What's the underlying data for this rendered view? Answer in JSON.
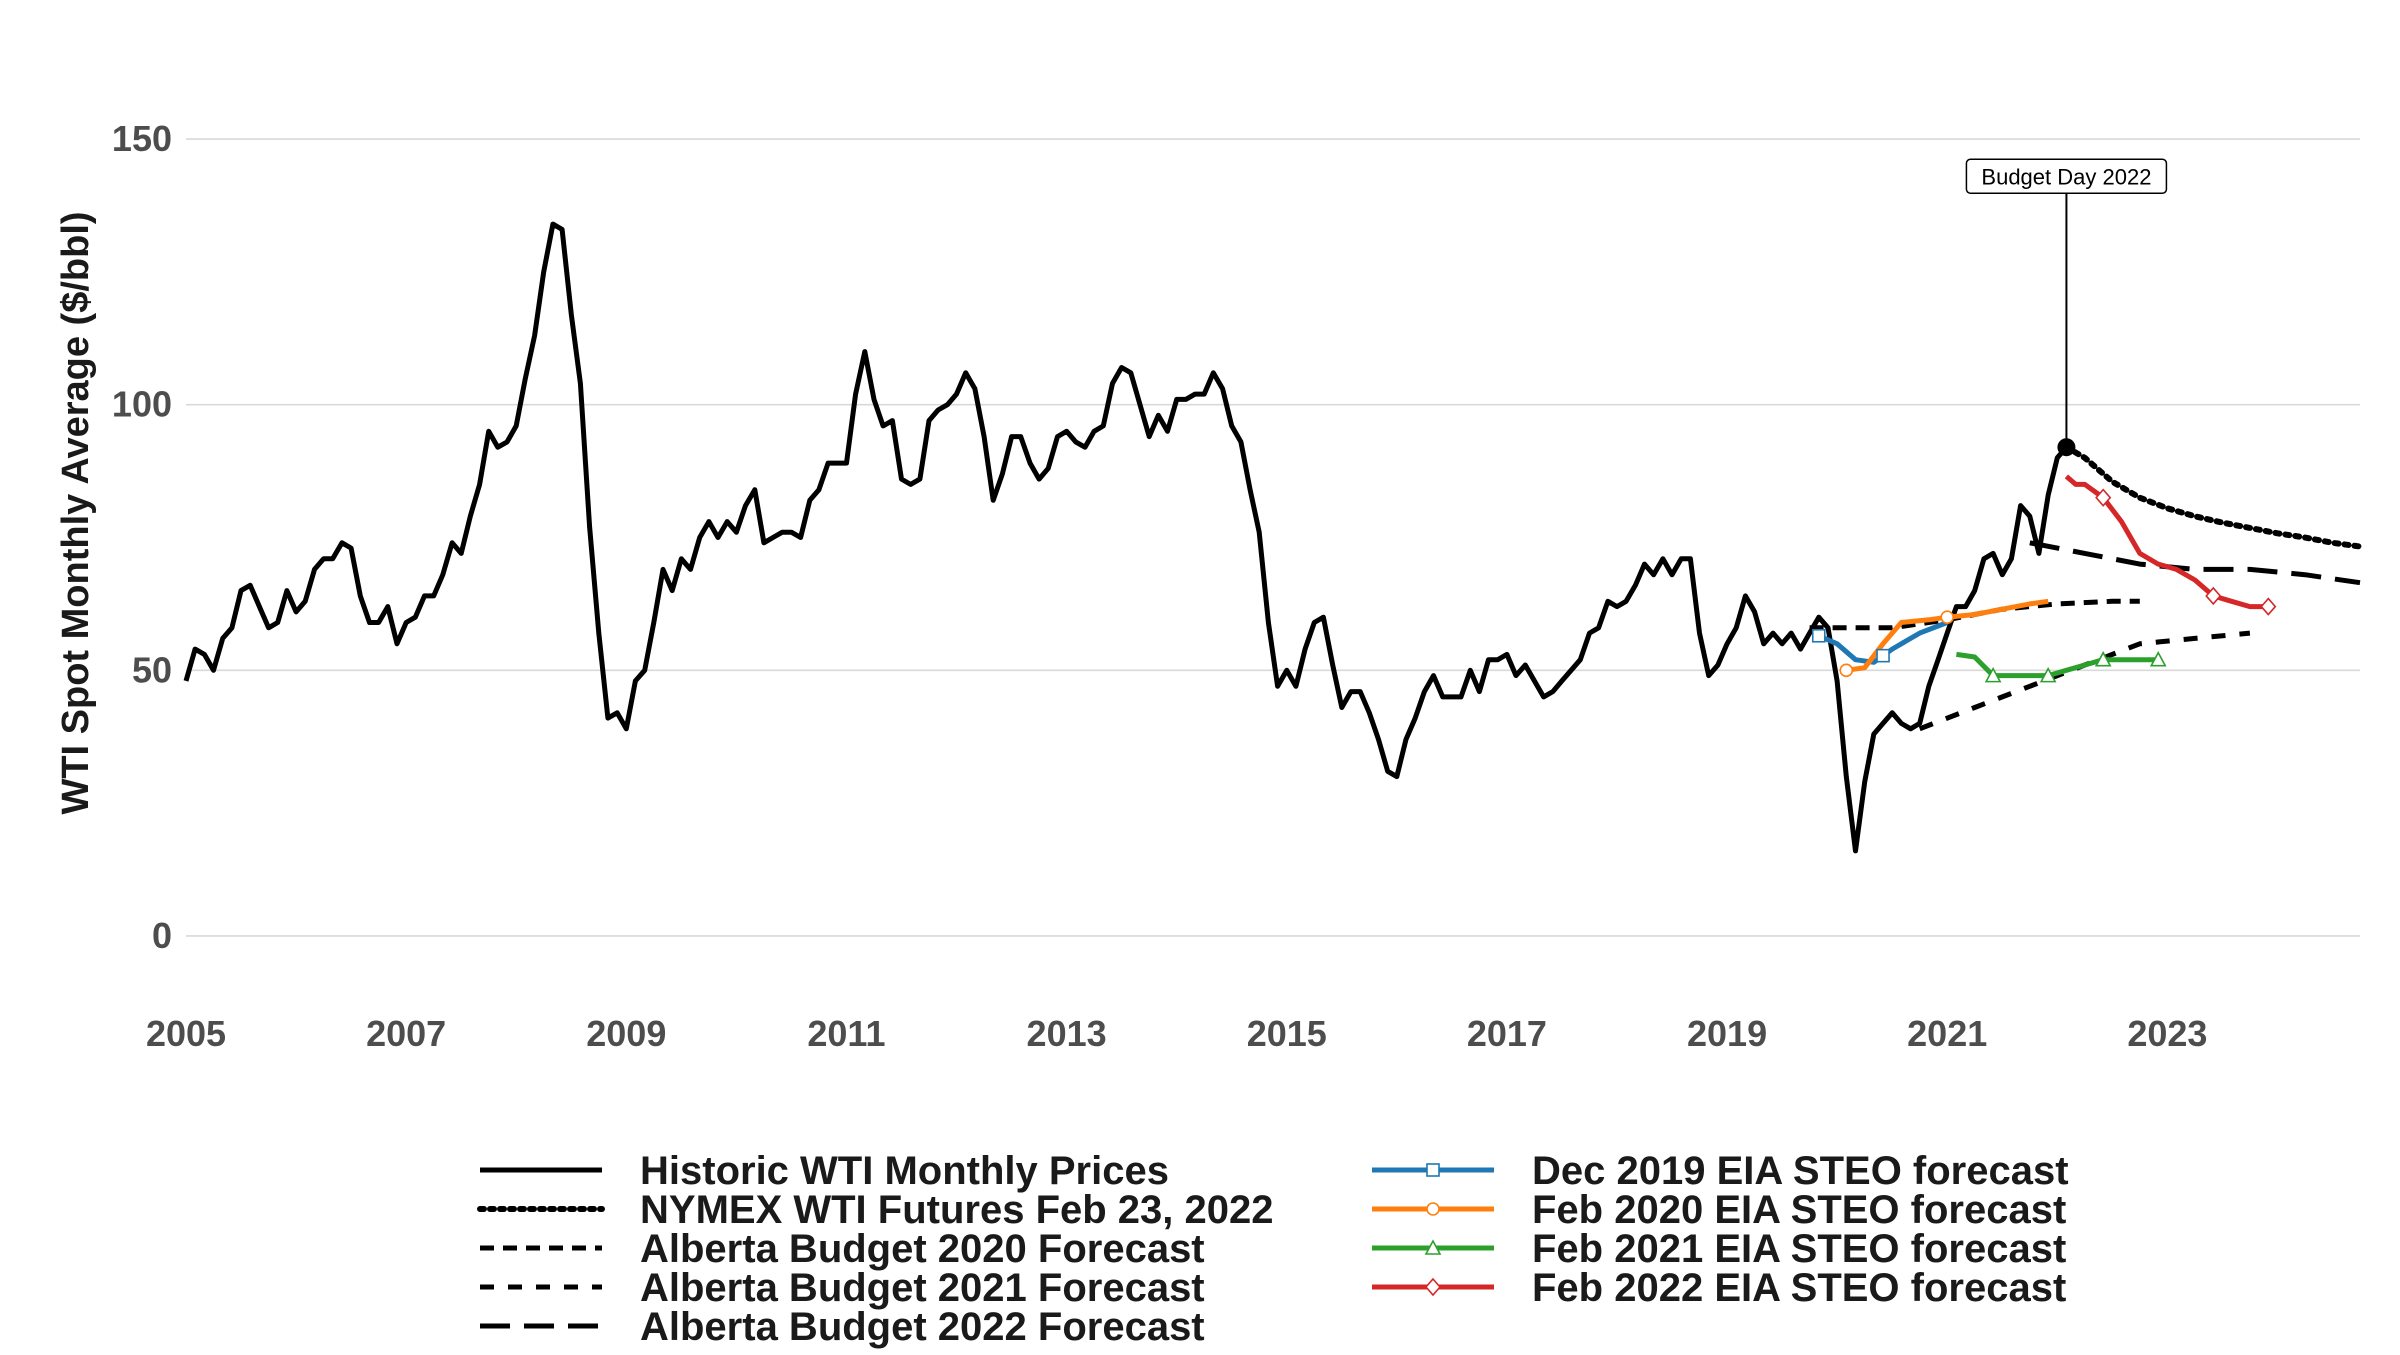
{
  "chart_data": {
    "type": "line",
    "title": "",
    "xlabel": "",
    "ylabel": "WTI Spot Monthly Average ($/bbl)",
    "xlim": [
      2005.0,
      2024.75
    ],
    "ylim": [
      -13,
      163
    ],
    "x_ticks": [
      2005,
      2007,
      2009,
      2011,
      2013,
      2015,
      2017,
      2019,
      2021,
      2023
    ],
    "x_tick_labels": [
      "2005",
      "2007",
      "2009",
      "2011",
      "2013",
      "2015",
      "2017",
      "2019",
      "2021",
      "2023"
    ],
    "y_ticks": [
      0,
      50,
      100,
      150
    ],
    "y_tick_labels": [
      "0",
      "50",
      "100",
      "150"
    ],
    "grid": "horizontal major gridlines",
    "legend_position": "bottom, two columns",
    "series": [
      {
        "name": "Historic WTI Monthly Prices",
        "color": "#000000",
        "dash": "solid",
        "points": [
          [
            2005.0,
            48
          ],
          [
            2005.083,
            54
          ],
          [
            2005.167,
            53
          ],
          [
            2005.25,
            50
          ],
          [
            2005.333,
            56
          ],
          [
            2005.417,
            58
          ],
          [
            2005.5,
            65
          ],
          [
            2005.583,
            66
          ],
          [
            2005.667,
            62
          ],
          [
            2005.75,
            58
          ],
          [
            2005.833,
            59
          ],
          [
            2005.917,
            65
          ],
          [
            2006.0,
            61
          ],
          [
            2006.083,
            63
          ],
          [
            2006.167,
            69
          ],
          [
            2006.25,
            71
          ],
          [
            2006.333,
            71
          ],
          [
            2006.417,
            74
          ],
          [
            2006.5,
            73
          ],
          [
            2006.583,
            64
          ],
          [
            2006.667,
            59
          ],
          [
            2006.75,
            59
          ],
          [
            2006.833,
            62
          ],
          [
            2006.917,
            55
          ],
          [
            2007.0,
            59
          ],
          [
            2007.083,
            60
          ],
          [
            2007.167,
            64
          ],
          [
            2007.25,
            64
          ],
          [
            2007.333,
            68
          ],
          [
            2007.417,
            74
          ],
          [
            2007.5,
            72
          ],
          [
            2007.583,
            79
          ],
          [
            2007.667,
            85
          ],
          [
            2007.75,
            95
          ],
          [
            2007.833,
            92
          ],
          [
            2007.917,
            93
          ],
          [
            2008.0,
            96
          ],
          [
            2008.083,
            105
          ],
          [
            2008.167,
            113
          ],
          [
            2008.25,
            125
          ],
          [
            2008.333,
            134
          ],
          [
            2008.417,
            133
          ],
          [
            2008.5,
            117
          ],
          [
            2008.583,
            104
          ],
          [
            2008.667,
            77
          ],
          [
            2008.75,
            57
          ],
          [
            2008.833,
            41
          ],
          [
            2008.917,
            42
          ],
          [
            2009.0,
            39
          ],
          [
            2009.083,
            48
          ],
          [
            2009.167,
            50
          ],
          [
            2009.25,
            59
          ],
          [
            2009.333,
            69
          ],
          [
            2009.417,
            65
          ],
          [
            2009.5,
            71
          ],
          [
            2009.583,
            69
          ],
          [
            2009.667,
            75
          ],
          [
            2009.75,
            78
          ],
          [
            2009.833,
            75
          ],
          [
            2009.917,
            78
          ],
          [
            2010.0,
            76
          ],
          [
            2010.083,
            81
          ],
          [
            2010.167,
            84
          ],
          [
            2010.25,
            74
          ],
          [
            2010.333,
            75
          ],
          [
            2010.417,
            76
          ],
          [
            2010.5,
            76
          ],
          [
            2010.583,
            75
          ],
          [
            2010.667,
            82
          ],
          [
            2010.75,
            84
          ],
          [
            2010.833,
            89
          ],
          [
            2010.917,
            89
          ],
          [
            2011.0,
            89
          ],
          [
            2011.083,
            102
          ],
          [
            2011.167,
            110
          ],
          [
            2011.25,
            101
          ],
          [
            2011.333,
            96
          ],
          [
            2011.417,
            97
          ],
          [
            2011.5,
            86
          ],
          [
            2011.583,
            85
          ],
          [
            2011.667,
            86
          ],
          [
            2011.75,
            97
          ],
          [
            2011.833,
            99
          ],
          [
            2011.917,
            100
          ],
          [
            2012.0,
            102
          ],
          [
            2012.083,
            106
          ],
          [
            2012.167,
            103
          ],
          [
            2012.25,
            94
          ],
          [
            2012.333,
            82
          ],
          [
            2012.417,
            87
          ],
          [
            2012.5,
            94
          ],
          [
            2012.583,
            94
          ],
          [
            2012.667,
            89
          ],
          [
            2012.75,
            86
          ],
          [
            2012.833,
            88
          ],
          [
            2012.917,
            94
          ],
          [
            2013.0,
            95
          ],
          [
            2013.083,
            93
          ],
          [
            2013.167,
            92
          ],
          [
            2013.25,
            95
          ],
          [
            2013.333,
            96
          ],
          [
            2013.417,
            104
          ],
          [
            2013.5,
            107
          ],
          [
            2013.583,
            106
          ],
          [
            2013.667,
            100
          ],
          [
            2013.75,
            94
          ],
          [
            2013.833,
            98
          ],
          [
            2013.917,
            95
          ],
          [
            2014.0,
            101
          ],
          [
            2014.083,
            101
          ],
          [
            2014.167,
            102
          ],
          [
            2014.25,
            102
          ],
          [
            2014.333,
            106
          ],
          [
            2014.417,
            103
          ],
          [
            2014.5,
            96
          ],
          [
            2014.583,
            93
          ],
          [
            2014.667,
            84
          ],
          [
            2014.75,
            76
          ],
          [
            2014.833,
            59
          ],
          [
            2014.917,
            47
          ],
          [
            2015.0,
            50
          ],
          [
            2015.083,
            47
          ],
          [
            2015.167,
            54
          ],
          [
            2015.25,
            59
          ],
          [
            2015.333,
            60
          ],
          [
            2015.417,
            51
          ],
          [
            2015.5,
            43
          ],
          [
            2015.583,
            46
          ],
          [
            2015.667,
            46
          ],
          [
            2015.75,
            42
          ],
          [
            2015.833,
            37
          ],
          [
            2015.917,
            31
          ],
          [
            2016.0,
            30
          ],
          [
            2016.083,
            37
          ],
          [
            2016.167,
            41
          ],
          [
            2016.25,
            46
          ],
          [
            2016.333,
            49
          ],
          [
            2016.417,
            45
          ],
          [
            2016.5,
            45
          ],
          [
            2016.583,
            45
          ],
          [
            2016.667,
            50
          ],
          [
            2016.75,
            46
          ],
          [
            2016.833,
            52
          ],
          [
            2016.917,
            52
          ],
          [
            2017.0,
            53
          ],
          [
            2017.083,
            49
          ],
          [
            2017.167,
            51
          ],
          [
            2017.25,
            48
          ],
          [
            2017.333,
            45
          ],
          [
            2017.417,
            46
          ],
          [
            2017.5,
            48
          ],
          [
            2017.583,
            50
          ],
          [
            2017.667,
            52
          ],
          [
            2017.75,
            57
          ],
          [
            2017.833,
            58
          ],
          [
            2017.917,
            63
          ],
          [
            2018.0,
            62
          ],
          [
            2018.083,
            63
          ],
          [
            2018.167,
            66
          ],
          [
            2018.25,
            70
          ],
          [
            2018.333,
            68
          ],
          [
            2018.417,
            71
          ],
          [
            2018.5,
            68
          ],
          [
            2018.583,
            71
          ],
          [
            2018.667,
            71
          ],
          [
            2018.75,
            57
          ],
          [
            2018.833,
            49
          ],
          [
            2018.917,
            51
          ],
          [
            2019.0,
            55
          ],
          [
            2019.083,
            58
          ],
          [
            2019.167,
            64
          ],
          [
            2019.25,
            61
          ],
          [
            2019.333,
            55
          ],
          [
            2019.417,
            57
          ],
          [
            2019.5,
            55
          ],
          [
            2019.583,
            57
          ],
          [
            2019.667,
            54
          ],
          [
            2019.75,
            57
          ],
          [
            2019.833,
            60
          ],
          [
            2019.917,
            58
          ],
          [
            2020.0,
            48
          ],
          [
            2020.083,
            30
          ],
          [
            2020.167,
            16
          ],
          [
            2020.25,
            29
          ],
          [
            2020.333,
            38
          ],
          [
            2020.417,
            40
          ],
          [
            2020.5,
            42
          ],
          [
            2020.583,
            40
          ],
          [
            2020.667,
            39
          ],
          [
            2020.75,
            40
          ],
          [
            2020.833,
            47
          ],
          [
            2020.917,
            52
          ],
          [
            2021.0,
            57
          ],
          [
            2021.083,
            62
          ],
          [
            2021.167,
            62
          ],
          [
            2021.25,
            65
          ],
          [
            2021.333,
            71
          ],
          [
            2021.417,
            72
          ],
          [
            2021.5,
            68
          ],
          [
            2021.583,
            71
          ],
          [
            2021.667,
            81
          ],
          [
            2021.75,
            79
          ],
          [
            2021.833,
            72
          ],
          [
            2021.917,
            83
          ],
          [
            2022.0,
            90
          ],
          [
            2022.083,
            92
          ]
        ]
      },
      {
        "name": "NYMEX WTI Futures Feb 23, 2022",
        "color": "#000000",
        "dash": "dotted",
        "points": [
          [
            2022.083,
            92
          ],
          [
            2022.25,
            90
          ],
          [
            2022.5,
            85.5
          ],
          [
            2022.75,
            82.5
          ],
          [
            2023.0,
            80.5
          ],
          [
            2023.25,
            79
          ],
          [
            2023.5,
            77.8
          ],
          [
            2023.75,
            76.8
          ],
          [
            2024.0,
            75.8
          ],
          [
            2024.25,
            75
          ],
          [
            2024.5,
            74
          ],
          [
            2024.75,
            73.3
          ]
        ]
      },
      {
        "name": "Alberta Budget 2020 Forecast",
        "color": "#000000",
        "dash": "dashed",
        "points": [
          [
            2019.75,
            58
          ],
          [
            2020.5,
            58
          ],
          [
            2021.0,
            59.5
          ],
          [
            2021.5,
            61.5
          ],
          [
            2022.0,
            62.5
          ],
          [
            2022.5,
            63
          ],
          [
            2022.75,
            63
          ]
        ]
      },
      {
        "name": "Alberta Budget 2021 Forecast",
        "color": "#000000",
        "dash": "dashed-wide",
        "points": [
          [
            2020.75,
            39
          ],
          [
            2021.25,
            43
          ],
          [
            2021.75,
            47
          ],
          [
            2022.25,
            51
          ],
          [
            2022.75,
            55
          ],
          [
            2023.25,
            56
          ],
          [
            2023.75,
            57
          ]
        ]
      },
      {
        "name": "Alberta Budget 2022 Forecast",
        "color": "#000000",
        "dash": "long-dash",
        "points": [
          [
            2021.75,
            74
          ],
          [
            2022.25,
            72
          ],
          [
            2022.75,
            70
          ],
          [
            2023.25,
            69
          ],
          [
            2023.75,
            69
          ],
          [
            2024.25,
            68
          ],
          [
            2024.75,
            66.5
          ]
        ]
      },
      {
        "name": "Dec 2019 EIA STEO forecast",
        "color": "#1f77b4",
        "dash": "solid",
        "marker": "square",
        "marker_x": [
          2019.833,
          2020.417
        ],
        "points": [
          [
            2019.833,
            56.5
          ],
          [
            2020.0,
            55
          ],
          [
            2020.167,
            52
          ],
          [
            2020.333,
            51.5
          ],
          [
            2020.5,
            54
          ],
          [
            2020.75,
            57
          ],
          [
            2021.0,
            59
          ]
        ]
      },
      {
        "name": "Feb 2020 EIA STEO forecast",
        "color": "#ff7f0e",
        "dash": "solid",
        "marker": "circle",
        "marker_x": [
          2020.083,
          2021.0
        ],
        "points": [
          [
            2020.083,
            50
          ],
          [
            2020.25,
            50.5
          ],
          [
            2020.417,
            55
          ],
          [
            2020.583,
            59
          ],
          [
            2020.833,
            59.5
          ],
          [
            2021.0,
            60
          ],
          [
            2021.25,
            60.5
          ],
          [
            2021.5,
            61.5
          ],
          [
            2021.75,
            62.5
          ],
          [
            2021.917,
            63
          ]
        ]
      },
      {
        "name": "Feb 2021 EIA STEO forecast",
        "color": "#2ca02c",
        "dash": "solid",
        "marker": "triangle",
        "marker_x": [
          2021.417,
          2021.917,
          2022.417,
          2022.917
        ],
        "points": [
          [
            2021.083,
            53
          ],
          [
            2021.25,
            52.5
          ],
          [
            2021.417,
            49
          ],
          [
            2021.667,
            49
          ],
          [
            2021.917,
            49
          ],
          [
            2022.083,
            50
          ],
          [
            2022.25,
            51
          ],
          [
            2022.417,
            52
          ],
          [
            2022.667,
            52
          ],
          [
            2022.917,
            52
          ]
        ]
      },
      {
        "name": "Feb 2022 EIA STEO forecast",
        "color": "#d62728",
        "dash": "solid",
        "marker": "diamond",
        "marker_x": [
          2022.417,
          2023.417,
          2023.917
        ],
        "points": [
          [
            2022.083,
            86.5
          ],
          [
            2022.167,
            85
          ],
          [
            2022.25,
            85
          ],
          [
            2022.417,
            82.5
          ],
          [
            2022.583,
            78
          ],
          [
            2022.75,
            72
          ],
          [
            2022.917,
            70
          ],
          [
            2023.083,
            69
          ],
          [
            2023.25,
            67
          ],
          [
            2023.417,
            64
          ],
          [
            2023.583,
            63
          ],
          [
            2023.75,
            62
          ],
          [
            2023.917,
            62
          ]
        ]
      }
    ],
    "annotation": {
      "label": "Budget Day 2022",
      "x": 2022.083,
      "y": 92,
      "label_y": 143
    }
  }
}
